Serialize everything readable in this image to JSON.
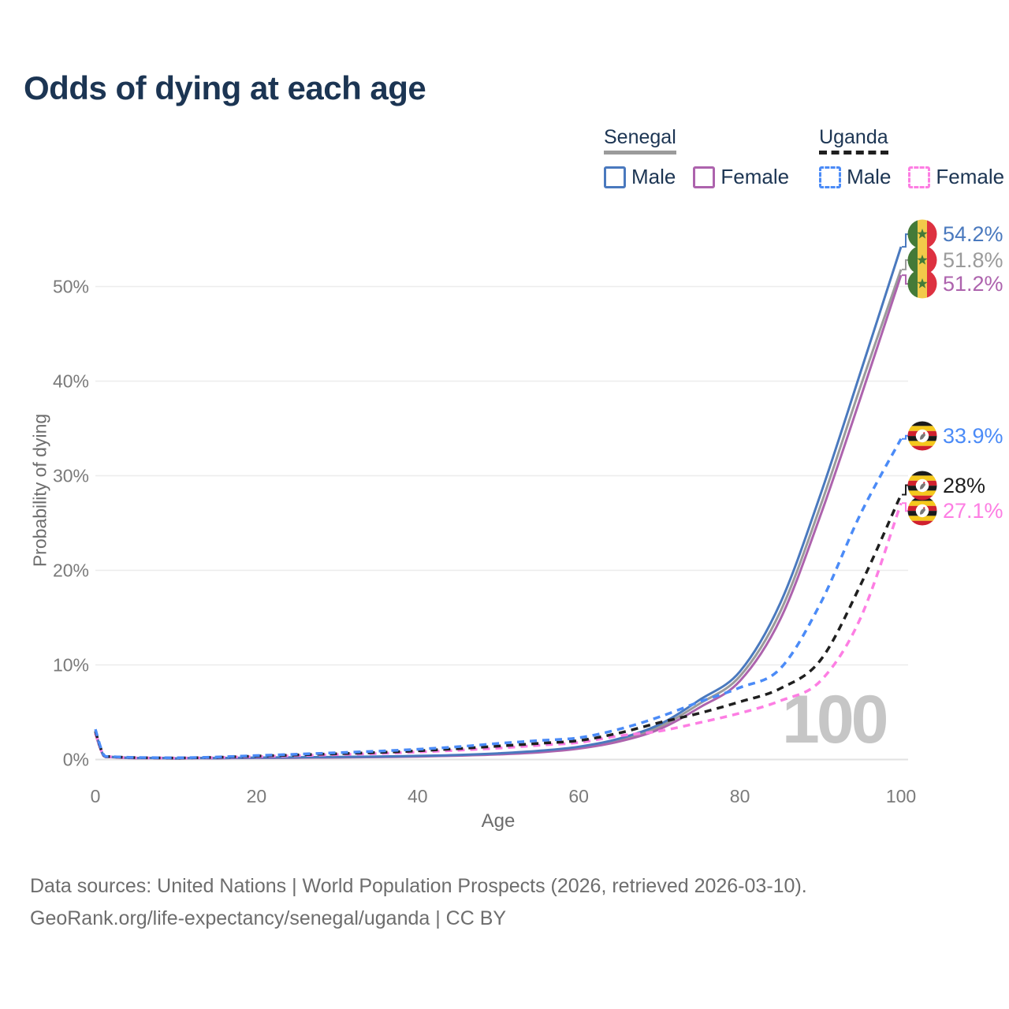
{
  "title": "Odds of dying at each age",
  "legend": {
    "groups": [
      {
        "name": "Senegal",
        "line_style": "solid",
        "line_color": "#9b9b9b",
        "items": [
          {
            "label": "Male",
            "color": "#4a79be",
            "style": "solid"
          },
          {
            "label": "Female",
            "color": "#ad63ad",
            "style": "solid"
          }
        ]
      },
      {
        "name": "Uganda",
        "line_style": "dashed",
        "line_color": "#1f1f1f",
        "items": [
          {
            "label": "Male",
            "color": "#4b8bf7",
            "style": "dashed"
          },
          {
            "label": "Female",
            "color": "#fd7ee3",
            "style": "dashed"
          }
        ]
      }
    ]
  },
  "chart_data": {
    "type": "line",
    "title": "Odds of dying at each age",
    "xlabel": "Age",
    "ylabel": "Probability of dying",
    "xlim": [
      0,
      100
    ],
    "ylim_pct": [
      0,
      56
    ],
    "grid": true,
    "watermark": "100",
    "x_tick_values": [
      0,
      20,
      40,
      60,
      80,
      100
    ],
    "x_tick_labels": [
      "0",
      "20",
      "40",
      "60",
      "80",
      "100"
    ],
    "y_tick_values": [
      0,
      10,
      20,
      30,
      40,
      50
    ],
    "y_tick_labels": [
      "0%",
      "10%",
      "20%",
      "30%",
      "40%",
      "50%"
    ],
    "ages": [
      0,
      1,
      2,
      5,
      10,
      15,
      20,
      25,
      30,
      35,
      40,
      45,
      50,
      55,
      60,
      65,
      70,
      75,
      80,
      85,
      90,
      95,
      100
    ],
    "series": [
      {
        "name": "Senegal",
        "country": "Senegal",
        "flag": "senegal",
        "color": "#9b9b9b",
        "dashed": false,
        "end_label": "51.8%",
        "label_dy": -12,
        "values_pct": [
          2.85,
          0.42,
          0.26,
          0.15,
          0.11,
          0.14,
          0.18,
          0.21,
          0.24,
          0.28,
          0.35,
          0.44,
          0.59,
          0.83,
          1.25,
          2.05,
          3.45,
          5.9,
          8.8,
          15.6,
          26.8,
          39.5,
          51.8
        ]
      },
      {
        "name": "Senegal Female",
        "country": "Senegal",
        "flag": "senegal",
        "color": "#ad63ad",
        "dashed": false,
        "end_label": "51.2%",
        "label_dy": 11,
        "values_pct": [
          2.7,
          0.4,
          0.25,
          0.14,
          0.1,
          0.13,
          0.17,
          0.19,
          0.22,
          0.26,
          0.32,
          0.41,
          0.54,
          0.75,
          1.15,
          1.9,
          3.2,
          5.5,
          8.3,
          14.8,
          25.8,
          38.3,
          51.2
        ]
      },
      {
        "name": "Senegal Male",
        "country": "Senegal",
        "flag": "senegal",
        "color": "#4a79be",
        "dashed": false,
        "end_label": "54.2%",
        "label_dy": -16,
        "values_pct": [
          3.0,
          0.45,
          0.28,
          0.16,
          0.12,
          0.15,
          0.2,
          0.23,
          0.27,
          0.31,
          0.38,
          0.48,
          0.65,
          0.92,
          1.35,
          2.2,
          3.7,
          6.3,
          9.3,
          16.5,
          28.0,
          41.0,
          54.2
        ]
      },
      {
        "name": "Uganda Female",
        "country": "Uganda",
        "flag": "uganda",
        "color": "#fd7ee3",
        "dashed": true,
        "end_label": "27.1%",
        "label_dy": 10,
        "values_pct": [
          2.8,
          0.48,
          0.28,
          0.18,
          0.15,
          0.21,
          0.31,
          0.41,
          0.52,
          0.63,
          0.79,
          0.98,
          1.2,
          1.5,
          1.8,
          2.5,
          3.0,
          3.9,
          4.9,
          6.2,
          8.3,
          15.0,
          27.1
        ]
      },
      {
        "name": "Uganda",
        "country": "Uganda",
        "flag": "uganda",
        "color": "#1f1f1f",
        "dashed": true,
        "end_label": "28%",
        "label_dy": -12,
        "values_pct": [
          3.0,
          0.5,
          0.3,
          0.2,
          0.16,
          0.23,
          0.36,
          0.48,
          0.61,
          0.74,
          0.92,
          1.15,
          1.42,
          1.7,
          2.0,
          2.8,
          3.9,
          4.9,
          6.1,
          7.5,
          10.5,
          18.5,
          28.0
        ]
      },
      {
        "name": "Uganda Male",
        "country": "Uganda",
        "flag": "uganda",
        "color": "#4b8bf7",
        "dashed": true,
        "end_label": "33.9%",
        "label_dy": -4,
        "values_pct": [
          3.2,
          0.55,
          0.32,
          0.22,
          0.18,
          0.26,
          0.42,
          0.56,
          0.72,
          0.88,
          1.08,
          1.35,
          1.7,
          2.0,
          2.3,
          3.2,
          4.5,
          6.1,
          7.6,
          9.6,
          16.5,
          26.0,
          33.9
        ]
      }
    ]
  },
  "footer": {
    "line1": "Data sources: United Nations | World Population Prospects (2026, retrieved 2026-03-10).",
    "line2": "GeoRank.org/life-expectancy/senegal/uganda | CC BY"
  }
}
